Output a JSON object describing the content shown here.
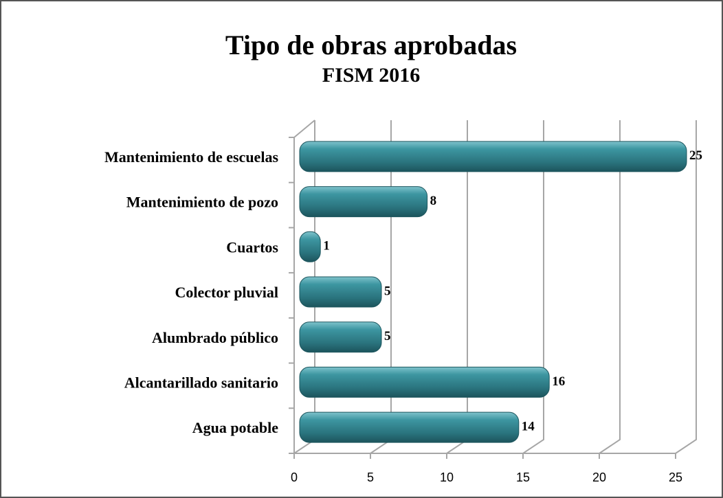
{
  "chart_data": {
    "type": "bar",
    "orientation": "horizontal",
    "title": "Tipo de obras aprobadas",
    "subtitle": "FISM 2016",
    "categories": [
      "Mantenimiento de escuelas",
      "Mantenimiento de pozo",
      "Cuartos",
      "Colector pluvial",
      "Alumbrado público",
      "Alcantarillado sanitario",
      "Agua potable"
    ],
    "values": [
      25,
      8,
      1,
      5,
      5,
      16,
      14
    ],
    "color": "#2f7f8a",
    "xlim": [
      0,
      25
    ],
    "xticks": [
      0,
      5,
      10,
      15,
      20,
      25
    ],
    "grid": true
  }
}
